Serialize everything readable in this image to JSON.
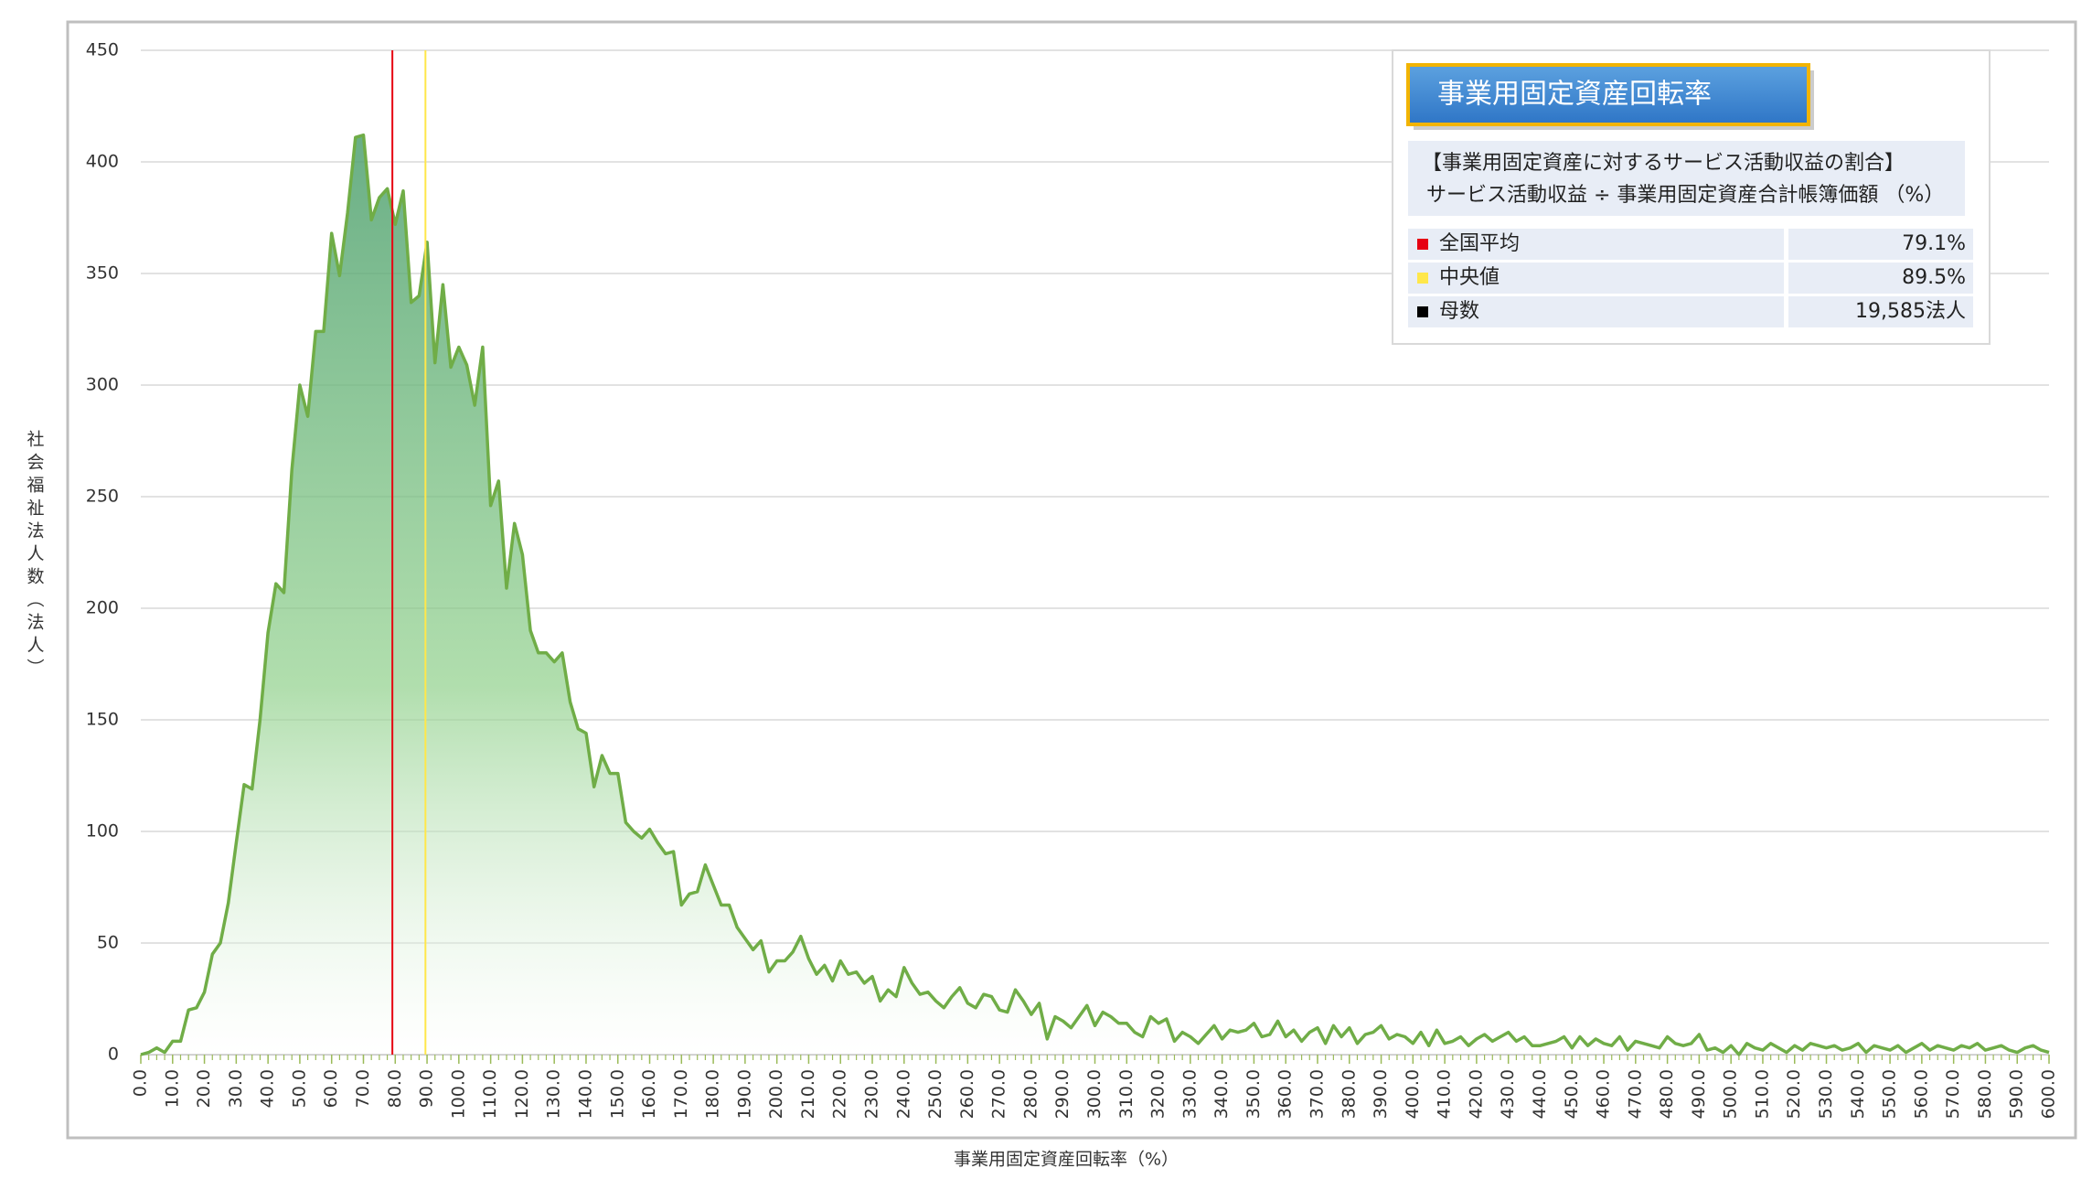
{
  "chart_data": {
    "type": "area",
    "xlabel": "事業用固定資産回転率（%）",
    "ylabel": "社会福祉法人数（法人）",
    "color": "#70ad47",
    "grid": true,
    "x": [
      0,
      2.5,
      5,
      7.5,
      10,
      12.5,
      15,
      17.5,
      20,
      22.5,
      25,
      27.5,
      30,
      32.5,
      35,
      37.5,
      40,
      42.5,
      45,
      47.5,
      50,
      52.5,
      55,
      57.5,
      60,
      62.5,
      65,
      67.5,
      70,
      72.5,
      75,
      77.5,
      80,
      82.5,
      85,
      87.5,
      90,
      92.5,
      95,
      97.5,
      100,
      102.5,
      105,
      107.5,
      110,
      112.5,
      115,
      117.5,
      120,
      122.5,
      125,
      127.5,
      130,
      132.5,
      135,
      137.5,
      140,
      142.5,
      145,
      147.5,
      150,
      152.5,
      155,
      157.5,
      160,
      162.5,
      165,
      167.5,
      170,
      172.5,
      175,
      177.5,
      180,
      182.5,
      185,
      187.5,
      190,
      192.5,
      195,
      197.5,
      200,
      202.5,
      205,
      207.5,
      210,
      212.5,
      215,
      217.5,
      220,
      222.5,
      225,
      227.5,
      230,
      232.5,
      235,
      237.5,
      240,
      242.5,
      245,
      247.5,
      250,
      252.5,
      255,
      257.5,
      260,
      262.5,
      265,
      267.5,
      270,
      272.5,
      275,
      277.5,
      280,
      282.5,
      285,
      287.5,
      290,
      292.5,
      295,
      297.5,
      300,
      302.5,
      305,
      307.5,
      310,
      312.5,
      315,
      317.5,
      320,
      322.5,
      325,
      327.5,
      330,
      332.5,
      335,
      337.5,
      340,
      342.5,
      345,
      347.5,
      350,
      352.5,
      355,
      357.5,
      360,
      362.5,
      365,
      367.5,
      370,
      372.5,
      375,
      377.5,
      380,
      382.5,
      385,
      387.5,
      390,
      392.5,
      395,
      397.5,
      400,
      402.5,
      405,
      407.5,
      410,
      412.5,
      415,
      417.5,
      420,
      422.5,
      425,
      427.5,
      430,
      432.5,
      435,
      437.5,
      440,
      442.5,
      445,
      447.5,
      450,
      452.5,
      455,
      457.5,
      460,
      462.5,
      465,
      467.5,
      470,
      472.5,
      475,
      477.5,
      480,
      482.5,
      485,
      487.5,
      490,
      492.5,
      495,
      497.5,
      500,
      502.5,
      505,
      507.5,
      510,
      512.5,
      515,
      517.5,
      520,
      522.5,
      525,
      527.5,
      530,
      532.5,
      535,
      537.5,
      540,
      542.5,
      545,
      547.5,
      550,
      552.5,
      555,
      557.5,
      560,
      562.5,
      565,
      567.5,
      570,
      572.5,
      575,
      577.5,
      580,
      582.5,
      585,
      587.5,
      590,
      592.5,
      595,
      597.5,
      600
    ],
    "values": [
      0,
      1,
      3,
      1,
      6,
      6,
      20,
      21,
      28,
      45,
      50,
      68,
      95,
      121,
      119,
      150,
      189,
      211,
      207,
      262,
      300,
      286,
      324,
      324,
      368,
      349,
      377,
      411,
      412,
      374,
      384,
      388,
      372,
      387,
      337,
      340,
      364,
      310,
      345,
      308,
      317,
      309,
      291,
      317,
      246,
      257,
      209,
      238,
      224,
      190,
      180,
      180,
      176,
      180,
      158,
      146,
      144,
      120,
      134,
      126,
      126,
      104,
      100,
      97,
      101,
      95,
      90,
      91,
      67,
      72,
      73,
      85,
      76,
      67,
      67,
      57,
      52,
      47,
      51,
      37,
      42,
      42,
      46,
      53,
      43,
      36,
      40,
      33,
      42,
      36,
      37,
      32,
      35,
      24,
      29,
      26,
      39,
      32,
      27,
      28,
      24,
      21,
      26,
      30,
      23,
      21,
      27,
      26,
      20,
      19,
      29,
      24,
      18,
      23,
      7,
      17,
      15,
      12,
      17,
      22,
      13,
      19,
      17,
      14,
      14,
      10,
      8,
      17,
      14,
      16,
      6,
      10,
      8,
      5,
      9,
      13,
      7,
      11,
      10,
      11,
      14,
      8,
      9,
      15,
      8,
      11,
      6,
      10,
      12,
      5,
      13,
      8,
      12,
      5,
      9,
      10,
      13,
      7,
      9,
      8,
      5,
      10,
      4,
      11,
      5,
      6,
      8,
      4,
      7,
      9,
      6,
      8,
      10,
      6,
      8,
      4,
      4,
      5,
      6,
      8,
      3,
      8,
      4,
      7,
      5,
      4,
      8,
      2,
      6,
      5,
      4,
      3,
      8,
      5,
      4,
      5,
      9,
      2,
      3,
      1,
      4,
      0,
      5,
      3,
      2,
      5,
      3,
      1,
      4,
      2,
      5,
      4,
      3,
      4,
      2,
      3,
      5,
      1,
      4,
      3,
      2,
      4,
      1,
      3,
      5,
      2,
      4,
      3,
      2,
      4,
      3,
      5,
      2,
      3,
      4,
      2,
      1,
      3,
      4,
      2,
      1
    ],
    "xlim": [
      0,
      600
    ],
    "xticks": [
      {
        "value": 0,
        "label": "0.0"
      },
      {
        "value": 10,
        "label": "10.0"
      },
      {
        "value": 20,
        "label": "20.0"
      },
      {
        "value": 30,
        "label": "30.0"
      },
      {
        "value": 40,
        "label": "40.0"
      },
      {
        "value": 50,
        "label": "50.0"
      },
      {
        "value": 60,
        "label": "60.0"
      },
      {
        "value": 70,
        "label": "70.0"
      },
      {
        "value": 80,
        "label": "80.0"
      },
      {
        "value": 90,
        "label": "90.0"
      },
      {
        "value": 100,
        "label": "100.0"
      },
      {
        "value": 110,
        "label": "110.0"
      },
      {
        "value": 120,
        "label": "120.0"
      },
      {
        "value": 130,
        "label": "130.0"
      },
      {
        "value": 140,
        "label": "140.0"
      },
      {
        "value": 150,
        "label": "150.0"
      },
      {
        "value": 160,
        "label": "160.0"
      },
      {
        "value": 170,
        "label": "170.0"
      },
      {
        "value": 180,
        "label": "180.0"
      },
      {
        "value": 190,
        "label": "190.0"
      },
      {
        "value": 200,
        "label": "200.0"
      },
      {
        "value": 210,
        "label": "210.0"
      },
      {
        "value": 220,
        "label": "220.0"
      },
      {
        "value": 230,
        "label": "230.0"
      },
      {
        "value": 240,
        "label": "240.0"
      },
      {
        "value": 250,
        "label": "250.0"
      },
      {
        "value": 260,
        "label": "260.0"
      },
      {
        "value": 270,
        "label": "270.0"
      },
      {
        "value": 280,
        "label": "280.0"
      },
      {
        "value": 290,
        "label": "290.0"
      },
      {
        "value": 300,
        "label": "300.0"
      },
      {
        "value": 310,
        "label": "310.0"
      },
      {
        "value": 320,
        "label": "320.0"
      },
      {
        "value": 330,
        "label": "330.0"
      },
      {
        "value": 340,
        "label": "340.0"
      },
      {
        "value": 350,
        "label": "350.0"
      },
      {
        "value": 360,
        "label": "360.0"
      },
      {
        "value": 370,
        "label": "370.0"
      },
      {
        "value": 380,
        "label": "380.0"
      },
      {
        "value": 390,
        "label": "390.0"
      },
      {
        "value": 400,
        "label": "400.0"
      },
      {
        "value": 410,
        "label": "410.0"
      },
      {
        "value": 420,
        "label": "420.0"
      },
      {
        "value": 430,
        "label": "430.0"
      },
      {
        "value": 440,
        "label": "440.0"
      },
      {
        "value": 450,
        "label": "450.0"
      },
      {
        "value": 460,
        "label": "460.0"
      },
      {
        "value": 470,
        "label": "470.0"
      },
      {
        "value": 480,
        "label": "480.0"
      },
      {
        "value": 490,
        "label": "490.0"
      },
      {
        "value": 500,
        "label": "500.0"
      },
      {
        "value": 510,
        "label": "510.0"
      },
      {
        "value": 520,
        "label": "520.0"
      },
      {
        "value": 530,
        "label": "530.0"
      },
      {
        "value": 540,
        "label": "540.0"
      },
      {
        "value": 550,
        "label": "550.0"
      },
      {
        "value": 560,
        "label": "560.0"
      },
      {
        "value": 570,
        "label": "570.0"
      },
      {
        "value": 580,
        "label": "580.0"
      },
      {
        "value": 590,
        "label": "590.0"
      },
      {
        "value": 600,
        "label": "600.0"
      }
    ],
    "ylim": [
      0,
      450
    ],
    "yticks": [
      0,
      50,
      100,
      150,
      200,
      250,
      300,
      350,
      400,
      450
    ],
    "reference_lines": [
      {
        "name": "全国平均",
        "value": 79.1,
        "label": "79.1%",
        "color": "#e60012"
      },
      {
        "name": "中央値",
        "value": 89.5,
        "label": "89.5%",
        "color": "#ffe74a"
      }
    ],
    "info": {
      "title": "事業用固定資産回転率",
      "description": [
        "【事業用固定資産に対するサービス活動収益の割合】",
        "サービス活動収益 ÷ 事業用固定資産合計帳簿価額 （%）"
      ],
      "count": {
        "name": "母数",
        "value": 19585,
        "label": "19,585法人",
        "color": "#000000"
      }
    }
  }
}
